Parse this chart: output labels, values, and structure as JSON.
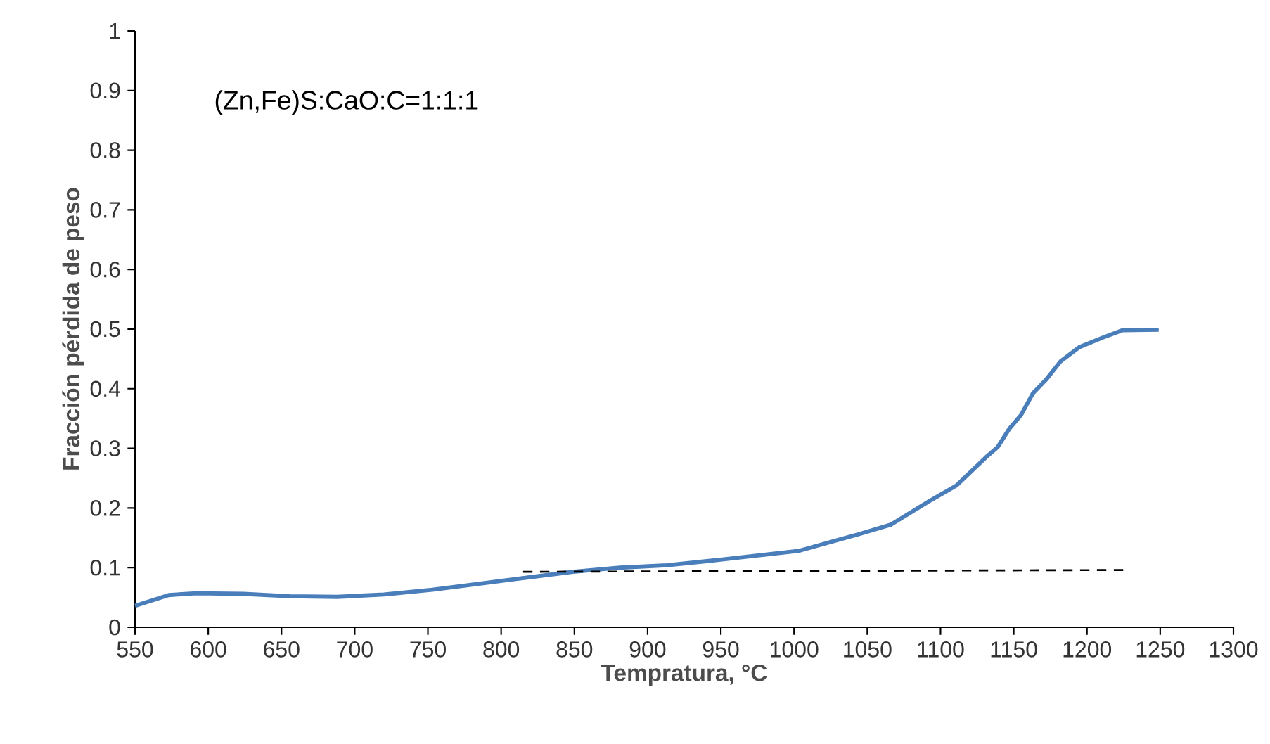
{
  "chart_data": {
    "type": "line",
    "xlabel": "Tempratura, °C",
    "ylabel": "Fracción pérdida de peso",
    "annotations": [
      "(Zn,Fe)S:CaO:C=1:1:1"
    ],
    "xlim": [
      550,
      1300
    ],
    "ylim": [
      0,
      1
    ],
    "xticks": [
      550,
      600,
      650,
      700,
      750,
      800,
      850,
      900,
      950,
      1000,
      1050,
      1100,
      1150,
      1200,
      1250,
      1300
    ],
    "yticks": [
      0,
      0.1,
      0.2,
      0.3,
      0.4,
      0.5,
      0.6,
      0.7,
      0.8,
      0.9,
      1
    ],
    "series": [
      {
        "color": "#4a7ebb",
        "line_style": "solid",
        "x": [
          550,
          573,
          592,
          624,
          656,
          688,
          720,
          753,
          785,
          810,
          849,
          881,
          913,
          945,
          1003,
          1044,
          1066,
          1092,
          1111,
          1131,
          1139,
          1147,
          1155,
          1163,
          1172,
          1182,
          1195,
          1211,
          1224,
          1249
        ],
        "values": [
          0.036,
          0.054,
          0.057,
          0.056,
          0.052,
          0.051,
          0.055,
          0.063,
          0.073,
          0.081,
          0.093,
          0.1,
          0.104,
          0.112,
          0.128,
          0.156,
          0.172,
          0.211,
          0.238,
          0.285,
          0.302,
          0.333,
          0.356,
          0.392,
          0.415,
          0.446,
          0.47,
          0.486,
          0.498,
          0.499
        ]
      },
      {
        "color": "#000000",
        "line_style": "dashed",
        "x": [
          815,
          1225
        ],
        "values": [
          0.093,
          0.096
        ]
      }
    ]
  }
}
